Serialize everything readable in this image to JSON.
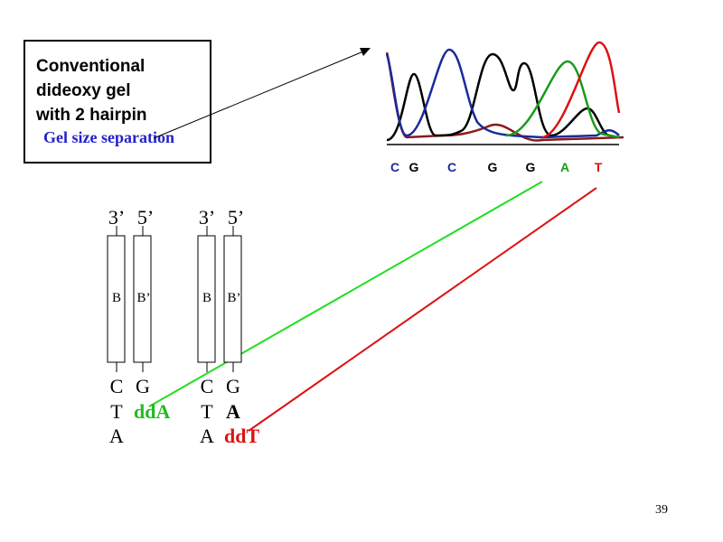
{
  "textbox": {
    "lines": [
      "Conventional",
      "dideoxy gel",
      "with 2 hairpin"
    ],
    "caption": "Gel size separation"
  },
  "chromatogram": {
    "bases": [
      "C",
      "G",
      "C",
      "G",
      "G",
      "A",
      "T"
    ]
  },
  "duplexes": [
    {
      "ends": [
        "3’",
        "5’"
      ],
      "strands": [
        "B",
        "B’"
      ],
      "left": [
        "C",
        "T",
        "A"
      ],
      "right": [
        "G",
        "ddA"
      ]
    },
    {
      "ends": [
        "3’",
        "5’"
      ],
      "strands": [
        "B",
        "B’"
      ],
      "left": [
        "C",
        "T",
        "A"
      ],
      "right": [
        "G",
        "A",
        "ddT"
      ]
    }
  ],
  "page_number": "39"
}
